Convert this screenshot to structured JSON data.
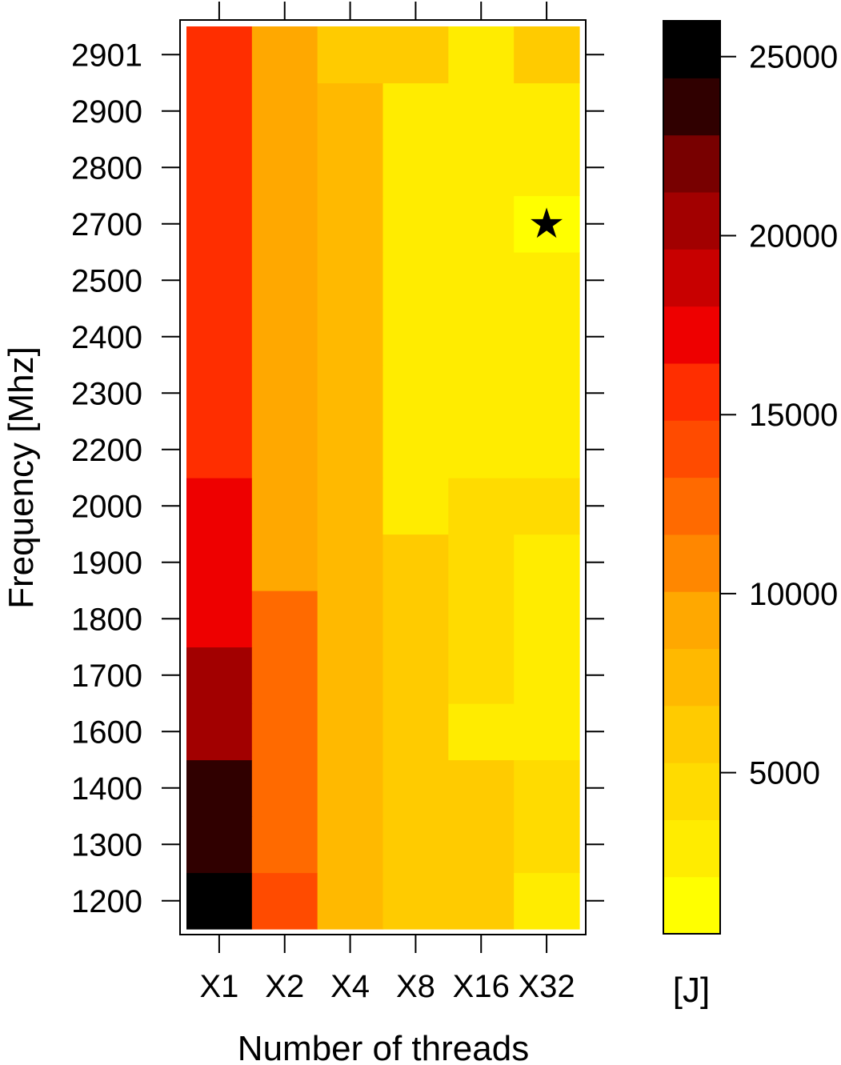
{
  "chart_data": {
    "type": "heatmap",
    "xlabel": "Number of threads",
    "ylabel": "Frequency [Mhz]",
    "x_categories": [
      "X1",
      "X2",
      "X4",
      "X8",
      "X16",
      "X32"
    ],
    "y_categories": [
      "1200",
      "1300",
      "1400",
      "1600",
      "1700",
      "1800",
      "1900",
      "2000",
      "2200",
      "2300",
      "2400",
      "2500",
      "2700",
      "2800",
      "2900",
      "2901"
    ],
    "values": [
      [
        25500,
        14000,
        8000,
        6000,
        6000,
        3000
      ],
      [
        23500,
        13000,
        8000,
        6000,
        6000,
        5000
      ],
      [
        23500,
        13000,
        8000,
        6000,
        5500,
        5000
      ],
      [
        20500,
        12000,
        7000,
        5500,
        3000,
        3000
      ],
      [
        20500,
        12000,
        7000,
        5500,
        4000,
        3500
      ],
      [
        18000,
        12000,
        7000,
        5500,
        4500,
        3500
      ],
      [
        18000,
        9500,
        7000,
        5500,
        4500,
        3500
      ],
      [
        18000,
        9500,
        7000,
        3000,
        4000,
        4000
      ],
      [
        16000,
        9500,
        7000,
        3500,
        3500,
        3500
      ],
      [
        16000,
        9500,
        7000,
        3500,
        3500,
        3500
      ],
      [
        15000,
        9500,
        7000,
        3500,
        3500,
        3500
      ],
      [
        15000,
        9500,
        7000,
        3500,
        3500,
        3500
      ],
      [
        15000,
        9500,
        7000,
        3500,
        3500,
        2000
      ],
      [
        15000,
        9500,
        7000,
        3500,
        3500,
        3500
      ],
      [
        15000,
        9500,
        7000,
        3500,
        3500,
        3500
      ],
      [
        15000,
        9500,
        6000,
        6000,
        3500,
        6000
      ]
    ],
    "marker": {
      "symbol": "★",
      "x": "X32",
      "y": "2700"
    },
    "colorbar": {
      "label": "[J]",
      "ticks": [
        "5000",
        "10000",
        "15000",
        "20000",
        "25000"
      ],
      "tick_values": [
        5000,
        10000,
        15000,
        20000,
        25000
      ],
      "range": [
        500,
        26000
      ],
      "colors": [
        "#FFFF00",
        "#FFEC00",
        "#FFDB00",
        "#FFCB00",
        "#FFB900",
        "#FFA800",
        "#FF8700",
        "#FF6A00",
        "#FF4B00",
        "#FF2E00",
        "#EE0000",
        "#C80000",
        "#A20000",
        "#780000",
        "#300000",
        "#000000"
      ]
    }
  }
}
